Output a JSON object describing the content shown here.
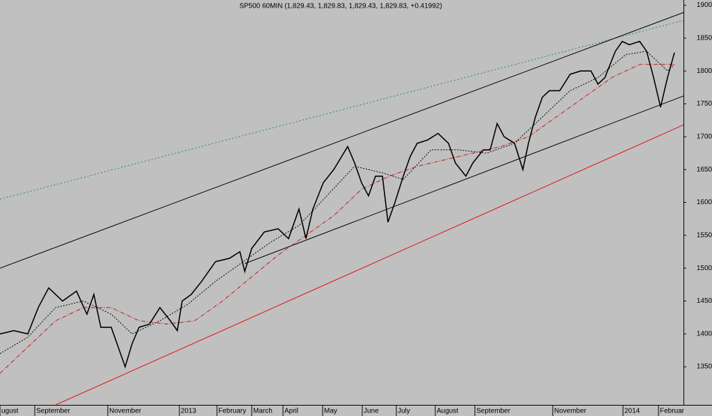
{
  "chart_data": {
    "type": "line",
    "title": "SP500 60MIN (1,829.43, 1,829.83, 1,829.43, 1,829.83, +0.41992)",
    "xlim": [
      0,
      983
    ],
    "ylim": [
      1292,
      1908
    ],
    "yticks": [
      1350,
      1400,
      1450,
      1500,
      1550,
      1600,
      1650,
      1700,
      1750,
      1800,
      1850,
      1900
    ],
    "xticks": [
      {
        "value": 0,
        "label": "ugust"
      },
      {
        "value": 50,
        "label": "September"
      },
      {
        "value": 155,
        "label": "November"
      },
      {
        "value": 258,
        "label": "2013"
      },
      {
        "value": 312,
        "label": "February"
      },
      {
        "value": 362,
        "label": "March"
      },
      {
        "value": 407,
        "label": "April"
      },
      {
        "value": 464,
        "label": "May"
      },
      {
        "value": 521,
        "label": "June"
      },
      {
        "value": 570,
        "label": "July"
      },
      {
        "value": 626,
        "label": "August"
      },
      {
        "value": 683,
        "label": "September"
      },
      {
        "value": 795,
        "label": "November"
      },
      {
        "value": 896,
        "label": "2014"
      },
      {
        "value": 947,
        "label": "Februar"
      }
    ],
    "series": [
      {
        "color": "#1a8a5a",
        "dash": "2,3",
        "x": [
          0,
          983
        ],
        "values": [
          1605,
          1877
        ]
      },
      {
        "color": "#000000",
        "x": [
          0,
          983
        ],
        "values": [
          1500,
          1889
        ]
      },
      {
        "color": "#000000",
        "x": [
          352,
          983
        ],
        "values": [
          1507,
          1762
        ]
      },
      {
        "color": "#e01010",
        "x": [
          80,
          983
        ],
        "values": [
          1292,
          1718
        ]
      },
      {
        "color": "#d01010",
        "dash": "6,2,1,2",
        "x": [
          0,
          40,
          80,
          120,
          160,
          200,
          240,
          280,
          320,
          360,
          400,
          440,
          480,
          520,
          560,
          600,
          640,
          680,
          720,
          760,
          800,
          840,
          880,
          920,
          950,
          970
        ],
        "values": [
          1340,
          1380,
          1420,
          1440,
          1440,
          1420,
          1415,
          1420,
          1450,
          1485,
          1520,
          1550,
          1580,
          1620,
          1640,
          1655,
          1665,
          1675,
          1685,
          1700,
          1730,
          1760,
          1790,
          1810,
          1810,
          1810
        ]
      },
      {
        "color": "#000000",
        "dash": "2,2",
        "x": [
          0,
          40,
          80,
          120,
          160,
          190,
          230,
          270,
          310,
          350,
          390,
          430,
          470,
          510,
          550,
          580,
          620,
          660,
          700,
          740,
          780,
          820,
          860,
          900,
          930,
          960,
          970
        ],
        "values": [
          1370,
          1395,
          1440,
          1450,
          1430,
          1400,
          1420,
          1445,
          1480,
          1510,
          1540,
          1565,
          1610,
          1655,
          1645,
          1635,
          1680,
          1680,
          1675,
          1690,
          1730,
          1770,
          1790,
          1825,
          1830,
          1800,
          1810
        ]
      },
      {
        "color": "#000000",
        "width": 1.6,
        "x": [
          0,
          20,
          40,
          55,
          70,
          90,
          110,
          125,
          135,
          145,
          160,
          170,
          180,
          190,
          200,
          215,
          230,
          245,
          255,
          262,
          275,
          290,
          310,
          330,
          345,
          352,
          362,
          380,
          400,
          415,
          430,
          440,
          450,
          465,
          480,
          500,
          510,
          520,
          530,
          540,
          550,
          558,
          568,
          580,
          590,
          600,
          615,
          630,
          645,
          655,
          670,
          680,
          695,
          705,
          715,
          725,
          740,
          752,
          760,
          770,
          780,
          790,
          805,
          820,
          835,
          850,
          860,
          870,
          885,
          895,
          905,
          920,
          930,
          940,
          950,
          960,
          970
        ],
        "values": [
          1400,
          1405,
          1400,
          1440,
          1470,
          1450,
          1465,
          1430,
          1460,
          1410,
          1410,
          1380,
          1350,
          1385,
          1410,
          1415,
          1440,
          1420,
          1405,
          1450,
          1460,
          1480,
          1510,
          1515,
          1525,
          1495,
          1530,
          1555,
          1560,
          1545,
          1590,
          1545,
          1590,
          1630,
          1650,
          1685,
          1660,
          1630,
          1610,
          1640,
          1640,
          1570,
          1600,
          1640,
          1670,
          1690,
          1695,
          1705,
          1690,
          1660,
          1640,
          1660,
          1680,
          1680,
          1720,
          1700,
          1690,
          1650,
          1690,
          1730,
          1760,
          1770,
          1770,
          1795,
          1800,
          1800,
          1780,
          1790,
          1830,
          1845,
          1840,
          1845,
          1830,
          1790,
          1745,
          1790,
          1828
        ]
      }
    ]
  }
}
